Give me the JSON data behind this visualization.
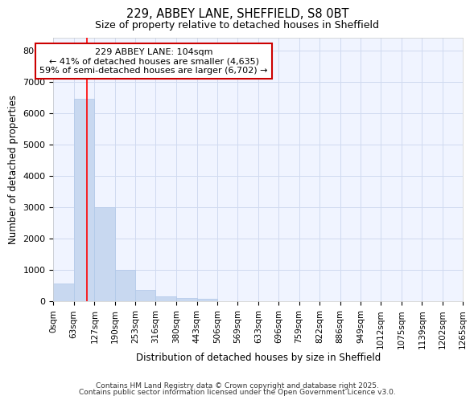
{
  "title1": "229, ABBEY LANE, SHEFFIELD, S8 0BT",
  "title2": "Size of property relative to detached houses in Sheffield",
  "xlabel": "Distribution of detached houses by size in Sheffield",
  "ylabel": "Number of detached properties",
  "bar_color": "#c8d8f0",
  "bar_edge_color": "#b0c8e8",
  "grid_color": "#d0daf0",
  "background_color": "#ffffff",
  "axes_background": "#f0f4ff",
  "red_line_x": 104,
  "annotation_line1": "229 ABBEY LANE: 104sqm",
  "annotation_line2": "← 41% of detached houses are smaller (4,635)",
  "annotation_line3": "59% of semi-detached houses are larger (6,702) →",
  "annotation_box_color": "#ffffff",
  "annotation_box_edge": "#cc0000",
  "bin_edges": [
    0,
    63,
    127,
    190,
    253,
    316,
    380,
    443,
    506,
    569,
    633,
    696,
    759,
    822,
    886,
    949,
    1012,
    1075,
    1139,
    1202,
    1265
  ],
  "bar_heights": [
    560,
    6460,
    3000,
    1000,
    370,
    160,
    100,
    80,
    0,
    0,
    0,
    0,
    0,
    0,
    0,
    0,
    0,
    0,
    0,
    0
  ],
  "ylim": [
    0,
    8400
  ],
  "yticks": [
    0,
    1000,
    2000,
    3000,
    4000,
    5000,
    6000,
    7000,
    8000
  ],
  "footer1": "Contains HM Land Registry data © Crown copyright and database right 2025.",
  "footer2": "Contains public sector information licensed under the Open Government Licence v3.0."
}
